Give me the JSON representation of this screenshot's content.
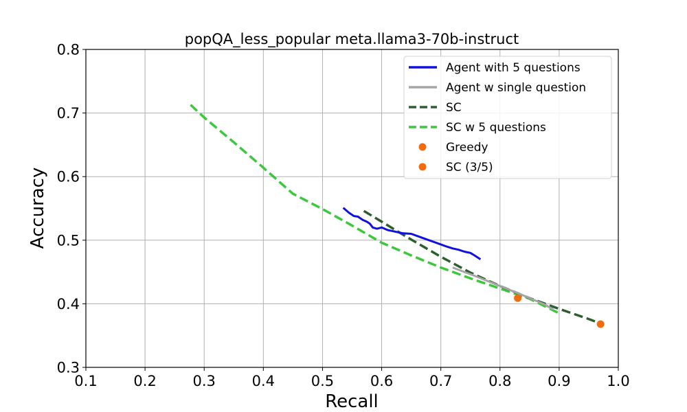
{
  "chart_data": {
    "type": "line",
    "title": "popQA_less_popular meta.llama3-70b-instruct",
    "xlabel": "Recall",
    "ylabel": "Accuracy",
    "xlim": [
      0.1,
      1.0
    ],
    "ylim": [
      0.3,
      0.8
    ],
    "xticks": [
      "0.1",
      "0.2",
      "0.3",
      "0.4",
      "0.5",
      "0.6",
      "0.7",
      "0.8",
      "0.9",
      "1.0"
    ],
    "yticks": [
      "0.3",
      "0.4",
      "0.5",
      "0.6",
      "0.7",
      "0.8"
    ],
    "grid": true,
    "legend_position": "top-right",
    "series": [
      {
        "name": "Agent with 5 questions",
        "kind": "line",
        "style": "solid",
        "color": "#1010e0",
        "points": [
          [
            0.535,
            0.551
          ],
          [
            0.545,
            0.543
          ],
          [
            0.553,
            0.538
          ],
          [
            0.56,
            0.537
          ],
          [
            0.568,
            0.532
          ],
          [
            0.575,
            0.529
          ],
          [
            0.58,
            0.526
          ],
          [
            0.585,
            0.52
          ],
          [
            0.592,
            0.518
          ],
          [
            0.6,
            0.52
          ],
          [
            0.61,
            0.516
          ],
          [
            0.62,
            0.514
          ],
          [
            0.635,
            0.511
          ],
          [
            0.65,
            0.51
          ],
          [
            0.665,
            0.505
          ],
          [
            0.68,
            0.5
          ],
          [
            0.695,
            0.495
          ],
          [
            0.71,
            0.49
          ],
          [
            0.72,
            0.487
          ],
          [
            0.73,
            0.485
          ],
          [
            0.74,
            0.482
          ],
          [
            0.75,
            0.48
          ],
          [
            0.757,
            0.476
          ],
          [
            0.767,
            0.47
          ]
        ]
      },
      {
        "name": "Agent w single question",
        "kind": "line",
        "style": "solid",
        "color": "#a5a5a5",
        "points": [
          [
            0.72,
            0.457
          ],
          [
            0.76,
            0.443
          ],
          [
            0.8,
            0.428
          ],
          [
            0.84,
            0.413
          ],
          [
            0.875,
            0.399
          ],
          [
            0.89,
            0.391
          ]
        ]
      },
      {
        "name": "SC",
        "kind": "line",
        "style": "dashed",
        "color": "#2d5e2d",
        "points": [
          [
            0.57,
            0.546
          ],
          [
            0.6,
            0.529
          ],
          [
            0.65,
            0.501
          ],
          [
            0.7,
            0.474
          ],
          [
            0.75,
            0.449
          ],
          [
            0.8,
            0.428
          ],
          [
            0.85,
            0.409
          ],
          [
            0.9,
            0.392
          ],
          [
            0.95,
            0.376
          ],
          [
            0.97,
            0.369
          ]
        ]
      },
      {
        "name": "SC w 5 questions",
        "kind": "line",
        "style": "dashed",
        "color": "#3cc83c",
        "points": [
          [
            0.277,
            0.713
          ],
          [
            0.3,
            0.693
          ],
          [
            0.35,
            0.654
          ],
          [
            0.4,
            0.614
          ],
          [
            0.45,
            0.573
          ],
          [
            0.5,
            0.549
          ],
          [
            0.55,
            0.523
          ],
          [
            0.6,
            0.496
          ],
          [
            0.65,
            0.476
          ],
          [
            0.7,
            0.457
          ],
          [
            0.75,
            0.44
          ],
          [
            0.8,
            0.424
          ],
          [
            0.85,
            0.408
          ],
          [
            0.9,
            0.385
          ]
        ]
      },
      {
        "name": "Greedy",
        "kind": "scatter",
        "color": "#f26b0f",
        "points": [
          [
            0.83,
            0.409
          ]
        ]
      },
      {
        "name": "SC (3/5)",
        "kind": "scatter",
        "color": "#f26b0f",
        "points": [
          [
            0.97,
            0.368
          ]
        ]
      }
    ]
  }
}
